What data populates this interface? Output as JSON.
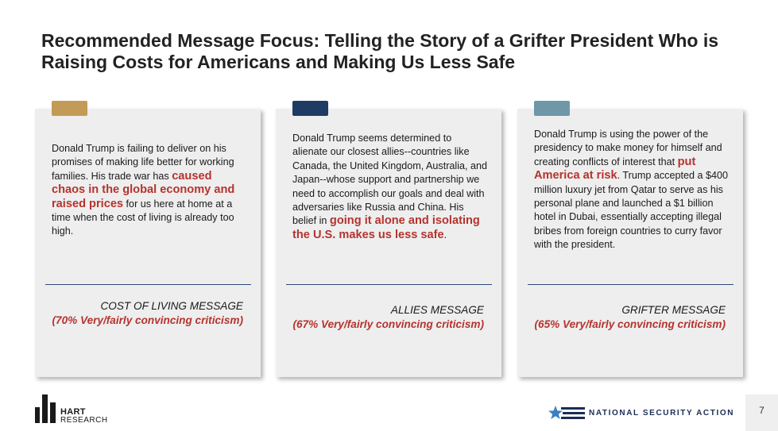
{
  "title": "Recommended Message Focus: Telling the Story of a Grifter President Who is Raising Costs for Americans and Making Us Less Safe",
  "cards": [
    {
      "accent": "#c49a57",
      "text_1": "Donald Trump is failing to deliver on his promises of making life better for working families. His trade war has ",
      "highlight": "caused chaos in the global economy and raised prices",
      "text_2": " for us here at home at a time when the cost of living is already too high.",
      "label": "COST OF LIVING MESSAGE",
      "pct": "(70% Very/fairly convincing criticism)"
    },
    {
      "accent": "#1f3a64",
      "text_1": "Donald Trump seems determined to alienate our closest allies--countries like Canada, the United Kingdom, Australia, and Japan--whose support and partnership we need to accomplish our goals and deal with adversaries like Russia and China. His belief in ",
      "highlight": "going it alone and isolating the U.S. makes us less safe",
      "text_2": ".",
      "label": "ALLIES MESSAGE",
      "pct": "(67% Very/fairly convincing criticism)"
    },
    {
      "accent": "#6f97a8",
      "text_1": "Donald Trump is using the power of the presidency to make money for himself and creating conflicts of interest that ",
      "highlight": "put America at risk",
      "text_2": ". Trump accepted a $400 million luxury jet from Qatar to serve as his personal plane and launched a $1 billion hotel in Dubai, essentially accepting illegal bribes from foreign countries to curry favor with the president.",
      "label": "GRIFTER MESSAGE",
      "pct": "(65% Very/fairly convincing criticism)"
    }
  ],
  "footer": {
    "hart_line1": "HART",
    "hart_line2": "RESEARCH",
    "nsa": "NATIONAL SECURITY ACTION",
    "page": "7"
  }
}
